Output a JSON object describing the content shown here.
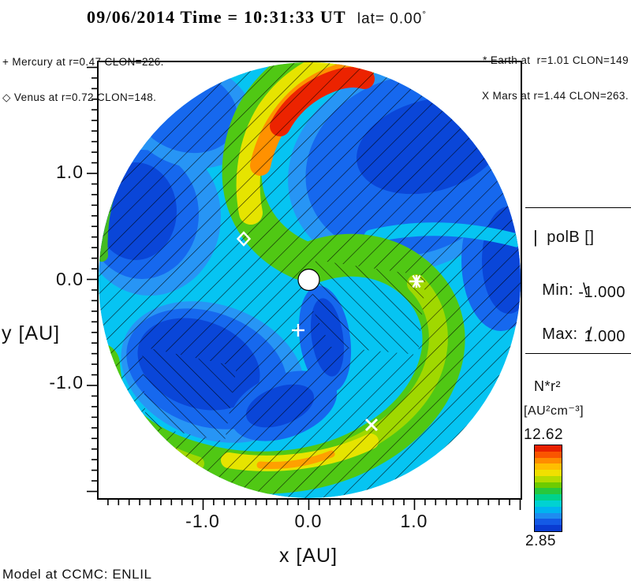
{
  "title": {
    "datetime": "09/06/2014 Time = 10:31:33 UT",
    "lat_label": "lat= 0.00",
    "degree": "°"
  },
  "planet_legend": {
    "mercury": "+ Mercury at r=0.47 CLON=226.",
    "venus": "◇ Venus at r=0.72 CLON=148.",
    "earth": "* Earth at  r=1.01 CLON=149",
    "mars": "X Mars at r=1.44 CLON=263."
  },
  "axes": {
    "x_label": "x [AU]",
    "y_label": "y [AU]",
    "x_ticks": [
      "-1.0",
      "0.0",
      "1.0"
    ],
    "y_ticks": [
      "1.0",
      "0.0",
      "-1.0"
    ]
  },
  "polb_legend": {
    "bar_glyph": "|",
    "title": "polB []",
    "min_label": "Min:",
    "min_glyph": "\\",
    "min_value": "-1.000",
    "max_label": "Max:",
    "max_glyph": "/",
    "max_value": "1.000"
  },
  "colorbar": {
    "quantity": "N*r²",
    "unit": "[AU²cm⁻³]",
    "max": "12.62",
    "min": "2.85",
    "colors": [
      "#e82000",
      "#fa5500",
      "#ff8c00",
      "#ffbe00",
      "#f0e000",
      "#b4dc00",
      "#6ecb00",
      "#28c83c",
      "#00d28c",
      "#00d2d2",
      "#00b4f0",
      "#1e8cf0",
      "#145ae6",
      "#0a3cd2"
    ]
  },
  "footer": {
    "model": "Model at CCMC: ENLIL"
  },
  "palette": {
    "base_cyan": "#06c4f2",
    "light_blue": "#2795f5",
    "blue": "#1668ee",
    "dark_blue": "#0a46d8",
    "green": "#50c814",
    "yellow_green": "#a0d800",
    "yellow": "#e6e400",
    "orange": "#ff9100",
    "red": "#ec2300"
  },
  "chart_data": {
    "type": "heatmap",
    "title": "09/06/2014 Time = 10:31:33 UT lat= 0.00°",
    "model": "ENLIL (Model at CCMC)",
    "quantity": "N*r² [AU²cm⁻³]",
    "xlabel": "x [AU]",
    "ylabel": "y [AU]",
    "xlim": [
      -2.0,
      2.0
    ],
    "ylim": [
      -2.0,
      2.0
    ],
    "x_ticks": [
      -1.0,
      0.0,
      1.0
    ],
    "y_ticks": [
      1.0,
      0.0,
      -1.0
    ],
    "colorbar_min": 2.85,
    "colorbar_max": 12.62,
    "overlay": "polB [] polarity hatching: Min -1.000 shown as \\ , Max 1.000 shown as /",
    "description": "Polar cut (lat=0) of solar-wind density N*r² out to ~2 AU; two high-density spiral arms (green/yellow, red maximum near top) over low-density blue regions, Parker-spiral field-line hatching, Sun as white dot at origin.",
    "planets": [
      {
        "name": "Mercury",
        "marker": "+",
        "r_au": 0.47,
        "clon_deg": 226,
        "x_au": -0.1,
        "y_au": -0.48
      },
      {
        "name": "Venus",
        "marker": "◇",
        "r_au": 0.72,
        "clon_deg": 148,
        "x_au": -0.61,
        "y_au": 0.39
      },
      {
        "name": "Earth",
        "marker": "*",
        "r_au": 1.01,
        "clon_deg": 149,
        "x_au": 1.02,
        "y_au": -0.02
      },
      {
        "name": "Mars",
        "marker": "X",
        "r_au": 1.44,
        "clon_deg": 263,
        "x_au": 0.6,
        "y_au": -1.37
      }
    ]
  }
}
